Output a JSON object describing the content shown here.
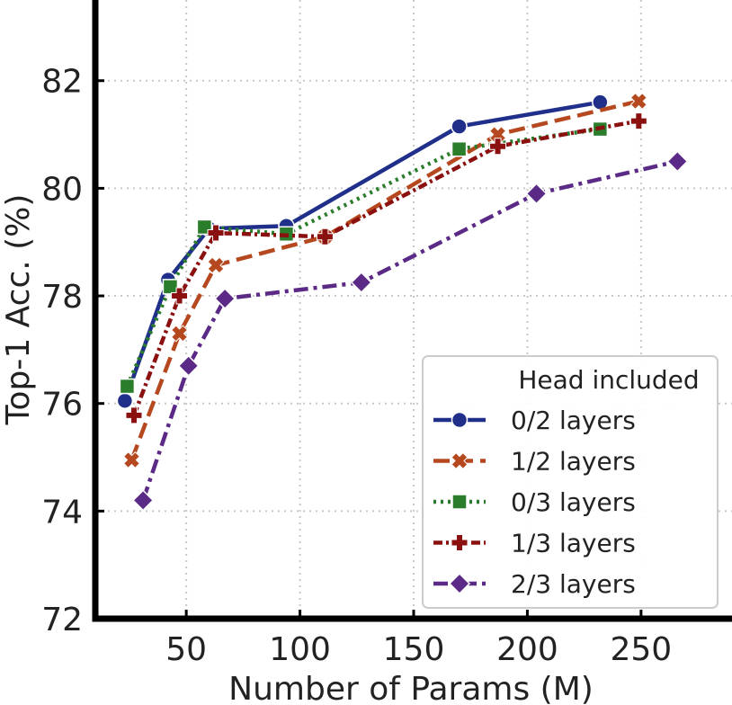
{
  "chart_data": {
    "type": "line",
    "title": "",
    "xlabel": "Number of Params (M)",
    "ylabel": "Top-1 Acc. (%)",
    "xlim": [
      10,
      290
    ],
    "ylim": [
      72,
      83.5
    ],
    "xticks": [
      50,
      100,
      150,
      200,
      250
    ],
    "yticks": [
      72,
      74,
      76,
      78,
      80,
      82
    ],
    "grid": true,
    "legend": {
      "title": "Head included",
      "placement": "lower-right"
    },
    "series": [
      {
        "name": "0/2 layers",
        "color": "#1f2f8a",
        "line": "solid",
        "marker": "circle",
        "x": [
          23,
          42,
          60,
          94,
          170,
          232
        ],
        "y": [
          76.05,
          78.3,
          79.25,
          79.3,
          81.15,
          81.6
        ]
      },
      {
        "name": "1/2 layers",
        "color": "#b5481e",
        "line": "dashed",
        "marker": "x",
        "x": [
          26,
          47,
          63,
          111,
          187,
          249
        ],
        "y": [
          74.95,
          77.3,
          78.57,
          79.1,
          81.0,
          81.62
        ]
      },
      {
        "name": "0/3 layers",
        "color": "#2a7d2a",
        "line": "dotted",
        "marker": "square",
        "x": [
          24,
          43,
          58,
          94,
          170,
          232
        ],
        "y": [
          76.32,
          78.17,
          79.28,
          79.15,
          80.73,
          81.1
        ]
      },
      {
        "name": "1/3 layers",
        "color": "#8b1010",
        "line": "dashdot-dense",
        "marker": "plus",
        "x": [
          27,
          47,
          63,
          111,
          187,
          249
        ],
        "y": [
          75.78,
          78.0,
          79.17,
          79.1,
          80.78,
          81.25
        ]
      },
      {
        "name": "2/3 layers",
        "color": "#5b2a86",
        "line": "dashdot",
        "marker": "diamond",
        "x": [
          31,
          51,
          67,
          127,
          204,
          266
        ],
        "y": [
          74.2,
          76.7,
          77.95,
          78.25,
          79.9,
          80.5
        ]
      }
    ]
  }
}
